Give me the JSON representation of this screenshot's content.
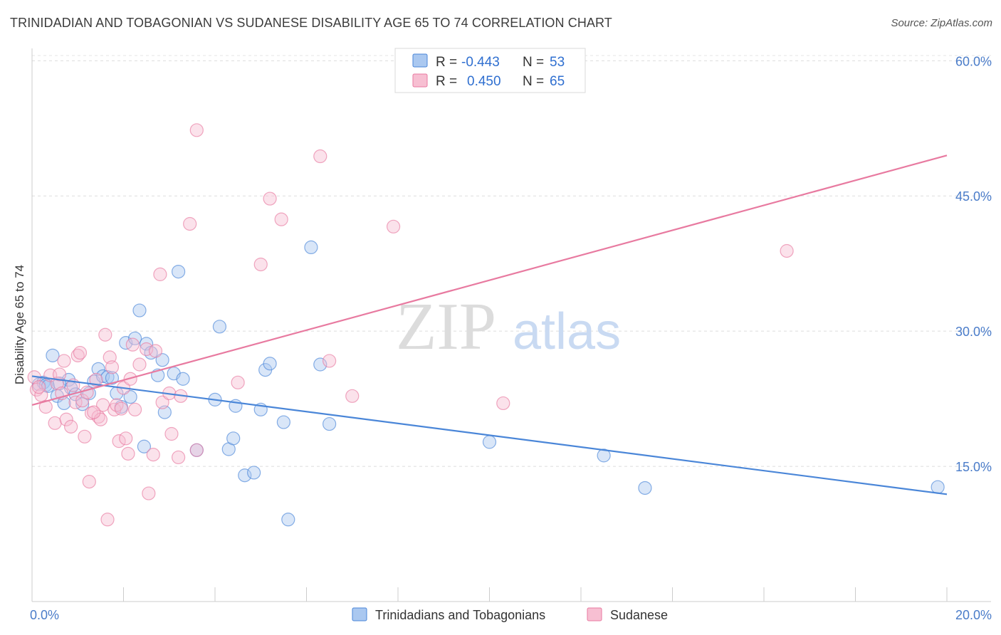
{
  "header": {
    "title": "TRINIDADIAN AND TOBAGONIAN VS SUDANESE DISABILITY AGE 65 TO 74 CORRELATION CHART",
    "source": "Source: ZipAtlas.com"
  },
  "watermark": {
    "zip": "ZIP",
    "atlas": "atlas"
  },
  "legend": {
    "r_label": "R =",
    "n_label": "N =",
    "rows": [
      {
        "r": "-0.443",
        "n": "53",
        "color": "#4a86d8"
      },
      {
        "r": "0.450",
        "n": "65",
        "color": "#e87aa0"
      }
    ]
  },
  "chart_data": {
    "type": "scatter",
    "title": "TRINIDADIAN AND TOBAGONIAN VS SUDANESE DISABILITY AGE 65 TO 74 CORRELATION CHART",
    "xlabel": "",
    "ylabel": "Disability Age 65 to 74",
    "xlim": [
      0,
      20
    ],
    "ylim": [
      0,
      62
    ],
    "x_tick_labels": [
      "0.0%",
      "20.0%"
    ],
    "y_ticks": [
      15,
      30,
      45,
      60
    ],
    "y_tick_labels": [
      "15.0%",
      "30.0%",
      "45.0%",
      "60.0%"
    ],
    "grid": true,
    "legend_position": "bottom",
    "series": [
      {
        "name": "Trinidadians and Tobagonians",
        "color": "#4a86d8",
        "fill": "#aac8f0",
        "trend": {
          "x": [
            0,
            20
          ],
          "y": [
            25.0,
            11.9
          ]
        },
        "points": [
          [
            0.15,
            24.1
          ],
          [
            0.25,
            24.3
          ],
          [
            0.3,
            24.0
          ],
          [
            0.35,
            23.9
          ],
          [
            0.45,
            27.3
          ],
          [
            0.55,
            22.8
          ],
          [
            0.7,
            22.0
          ],
          [
            0.8,
            24.6
          ],
          [
            0.85,
            23.7
          ],
          [
            0.95,
            23.0
          ],
          [
            1.1,
            21.9
          ],
          [
            1.25,
            23.1
          ],
          [
            1.35,
            24.4
          ],
          [
            1.45,
            25.8
          ],
          [
            1.55,
            25.0
          ],
          [
            1.65,
            24.9
          ],
          [
            1.75,
            24.8
          ],
          [
            1.85,
            23.1
          ],
          [
            1.95,
            21.6
          ],
          [
            2.05,
            28.7
          ],
          [
            2.15,
            22.7
          ],
          [
            2.25,
            29.2
          ],
          [
            2.35,
            32.3
          ],
          [
            2.5,
            28.6
          ],
          [
            2.6,
            27.6
          ],
          [
            2.75,
            25.1
          ],
          [
            2.85,
            26.8
          ],
          [
            2.9,
            21.0
          ],
          [
            3.1,
            25.3
          ],
          [
            3.2,
            36.6
          ],
          [
            3.3,
            24.7
          ],
          [
            3.6,
            16.8
          ],
          [
            4.0,
            22.4
          ],
          [
            4.1,
            30.5
          ],
          [
            4.3,
            16.9
          ],
          [
            4.4,
            18.1
          ],
          [
            4.45,
            21.7
          ],
          [
            4.65,
            14.0
          ],
          [
            4.85,
            14.3
          ],
          [
            5.0,
            21.3
          ],
          [
            5.1,
            25.7
          ],
          [
            5.2,
            26.4
          ],
          [
            5.5,
            19.9
          ],
          [
            5.6,
            9.1
          ],
          [
            6.1,
            39.3
          ],
          [
            6.3,
            26.3
          ],
          [
            6.5,
            19.7
          ],
          [
            10.0,
            17.7
          ],
          [
            12.5,
            16.2
          ],
          [
            13.4,
            12.6
          ],
          [
            2.45,
            17.2
          ],
          [
            0.6,
            24.2
          ],
          [
            19.8,
            12.7
          ]
        ]
      },
      {
        "name": "Sudanese",
        "color": "#e87aa0",
        "fill": "#f7bfd2",
        "trend": {
          "x": [
            0,
            20
          ],
          "y": [
            21.8,
            49.5
          ]
        },
        "points": [
          [
            0.05,
            24.9
          ],
          [
            0.1,
            23.5
          ],
          [
            0.2,
            22.9
          ],
          [
            0.3,
            21.6
          ],
          [
            0.4,
            25.1
          ],
          [
            0.5,
            19.8
          ],
          [
            0.55,
            24.2
          ],
          [
            0.6,
            25.2
          ],
          [
            0.7,
            26.7
          ],
          [
            0.75,
            20.2
          ],
          [
            0.85,
            19.4
          ],
          [
            0.9,
            24.0
          ],
          [
            0.95,
            22.1
          ],
          [
            1.0,
            27.3
          ],
          [
            1.05,
            27.6
          ],
          [
            1.1,
            22.3
          ],
          [
            1.15,
            18.3
          ],
          [
            1.2,
            23.2
          ],
          [
            1.25,
            13.3
          ],
          [
            1.3,
            20.9
          ],
          [
            1.4,
            24.6
          ],
          [
            1.45,
            20.5
          ],
          [
            1.5,
            20.2
          ],
          [
            1.55,
            21.8
          ],
          [
            1.6,
            29.6
          ],
          [
            1.65,
            9.1
          ],
          [
            1.7,
            27.1
          ],
          [
            1.75,
            26.0
          ],
          [
            1.8,
            21.3
          ],
          [
            1.85,
            21.8
          ],
          [
            1.9,
            17.8
          ],
          [
            1.95,
            21.4
          ],
          [
            2.0,
            23.7
          ],
          [
            2.05,
            18.1
          ],
          [
            2.1,
            16.4
          ],
          [
            2.15,
            24.7
          ],
          [
            2.2,
            28.5
          ],
          [
            2.25,
            21.3
          ],
          [
            2.35,
            26.3
          ],
          [
            2.5,
            28.0
          ],
          [
            2.55,
            12.0
          ],
          [
            2.65,
            16.3
          ],
          [
            2.7,
            27.8
          ],
          [
            2.8,
            36.3
          ],
          [
            2.85,
            22.1
          ],
          [
            3.0,
            23.1
          ],
          [
            3.05,
            18.6
          ],
          [
            3.2,
            16.0
          ],
          [
            3.25,
            22.8
          ],
          [
            3.45,
            41.9
          ],
          [
            3.6,
            16.8
          ],
          [
            3.6,
            52.3
          ],
          [
            4.5,
            24.3
          ],
          [
            5.0,
            37.4
          ],
          [
            5.2,
            44.7
          ],
          [
            5.45,
            42.4
          ],
          [
            6.3,
            49.4
          ],
          [
            6.5,
            26.7
          ],
          [
            7.0,
            22.8
          ],
          [
            7.9,
            41.6
          ],
          [
            10.3,
            22.0
          ],
          [
            16.5,
            38.9
          ],
          [
            0.15,
            23.8
          ],
          [
            0.65,
            23.1
          ],
          [
            1.35,
            21.0
          ]
        ]
      }
    ]
  }
}
